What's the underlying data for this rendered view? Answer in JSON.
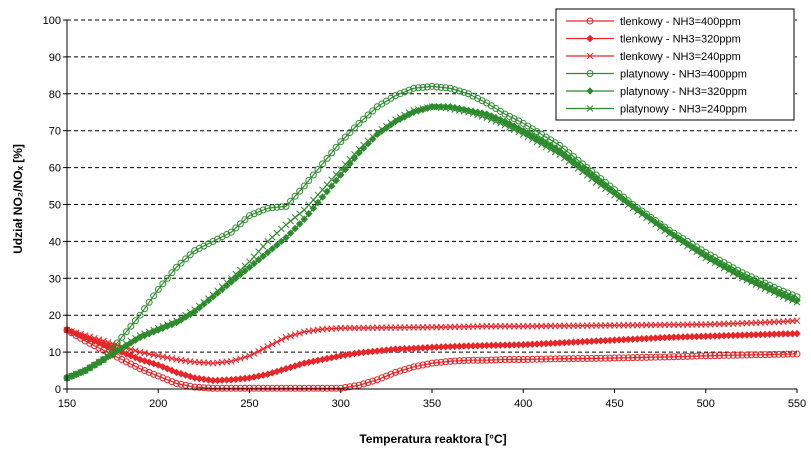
{
  "chart_data": {
    "type": "line",
    "xlabel": "Temperatura reaktora [°C]",
    "ylabel": "Udział NO₂/NOₓ [%]",
    "xlim": [
      150,
      550
    ],
    "ylim": [
      0,
      100
    ],
    "x_ticks": [
      "150",
      "200",
      "250",
      "300",
      "350",
      "400",
      "450",
      "500",
      "550"
    ],
    "y_ticks": [
      "0",
      "10",
      "20",
      "30",
      "40",
      "50",
      "60",
      "70",
      "80",
      "90",
      "100"
    ],
    "grid": "horizontal-dashed",
    "legend_position": "top-right",
    "series": [
      {
        "name": "tlenkowy - NH3=400ppm",
        "color": "#e8262a",
        "marker": "circle-open",
        "points": [
          [
            150,
            16
          ],
          [
            160,
            13
          ],
          [
            170,
            10.5
          ],
          [
            180,
            8
          ],
          [
            190,
            5.5
          ],
          [
            200,
            3.5
          ],
          [
            210,
            1.5
          ],
          [
            220,
            0.5
          ],
          [
            230,
            0.2
          ],
          [
            240,
            0.2
          ],
          [
            250,
            0.2
          ],
          [
            260,
            0.2
          ],
          [
            270,
            0.2
          ],
          [
            280,
            0.2
          ],
          [
            290,
            0.2
          ],
          [
            300,
            0.2
          ],
          [
            310,
            1
          ],
          [
            320,
            2.5
          ],
          [
            330,
            4.5
          ],
          [
            340,
            6
          ],
          [
            350,
            7
          ],
          [
            360,
            7.5
          ],
          [
            370,
            7.8
          ],
          [
            380,
            7.8
          ],
          [
            390,
            8
          ],
          [
            400,
            8
          ],
          [
            420,
            8.2
          ],
          [
            440,
            8.3
          ],
          [
            460,
            8.5
          ],
          [
            480,
            8.7
          ],
          [
            500,
            9
          ],
          [
            520,
            9.2
          ],
          [
            540,
            9.4
          ],
          [
            550,
            9.5
          ]
        ]
      },
      {
        "name": "tlenkowy - NH3=320ppm",
        "color": "#e8262a",
        "marker": "diamond-filled",
        "points": [
          [
            150,
            16
          ],
          [
            160,
            14
          ],
          [
            170,
            12
          ],
          [
            180,
            10
          ],
          [
            190,
            8
          ],
          [
            200,
            6.5
          ],
          [
            210,
            4.5
          ],
          [
            220,
            3
          ],
          [
            230,
            2.3
          ],
          [
            240,
            2.5
          ],
          [
            250,
            3
          ],
          [
            260,
            4
          ],
          [
            270,
            5.5
          ],
          [
            280,
            7
          ],
          [
            290,
            8
          ],
          [
            300,
            9
          ],
          [
            310,
            9.8
          ],
          [
            320,
            10.3
          ],
          [
            330,
            10.8
          ],
          [
            340,
            11
          ],
          [
            350,
            11.3
          ],
          [
            360,
            11.5
          ],
          [
            380,
            11.8
          ],
          [
            400,
            12
          ],
          [
            420,
            12.5
          ],
          [
            440,
            13
          ],
          [
            460,
            13.5
          ],
          [
            480,
            14
          ],
          [
            500,
            14.3
          ],
          [
            520,
            14.6
          ],
          [
            540,
            14.9
          ],
          [
            550,
            15
          ]
        ]
      },
      {
        "name": "tlenkowy - NH3=240ppm",
        "color": "#e8262a",
        "marker": "x",
        "points": [
          [
            150,
            16
          ],
          [
            160,
            14.5
          ],
          [
            170,
            13
          ],
          [
            180,
            11.5
          ],
          [
            190,
            10
          ],
          [
            200,
            9
          ],
          [
            210,
            8
          ],
          [
            220,
            7.3
          ],
          [
            230,
            7
          ],
          [
            240,
            7.5
          ],
          [
            250,
            9
          ],
          [
            260,
            11.5
          ],
          [
            270,
            14
          ],
          [
            280,
            15.5
          ],
          [
            290,
            16.2
          ],
          [
            300,
            16.5
          ],
          [
            320,
            16.6
          ],
          [
            340,
            16.7
          ],
          [
            360,
            16.8
          ],
          [
            380,
            17
          ],
          [
            400,
            17
          ],
          [
            420,
            17.1
          ],
          [
            440,
            17.2
          ],
          [
            460,
            17.3
          ],
          [
            480,
            17.4
          ],
          [
            500,
            17.5
          ],
          [
            520,
            17.8
          ],
          [
            540,
            18.2
          ],
          [
            550,
            18.5
          ]
        ]
      },
      {
        "name": "platynowy - NH3=400ppm",
        "color": "#2e8b2e",
        "marker": "circle-open",
        "points": [
          [
            150,
            3
          ],
          [
            160,
            5
          ],
          [
            170,
            8
          ],
          [
            180,
            14
          ],
          [
            190,
            20
          ],
          [
            200,
            27
          ],
          [
            210,
            33
          ],
          [
            220,
            37.5
          ],
          [
            230,
            40
          ],
          [
            240,
            42.5
          ],
          [
            250,
            47
          ],
          [
            260,
            49
          ],
          [
            270,
            49.5
          ],
          [
            280,
            55
          ],
          [
            290,
            61
          ],
          [
            300,
            67
          ],
          [
            310,
            72
          ],
          [
            320,
            76.5
          ],
          [
            330,
            79.5
          ],
          [
            340,
            81.5
          ],
          [
            350,
            82
          ],
          [
            360,
            81.5
          ],
          [
            370,
            80
          ],
          [
            380,
            77.5
          ],
          [
            390,
            74.5
          ],
          [
            400,
            72
          ],
          [
            420,
            66
          ],
          [
            440,
            58
          ],
          [
            460,
            50
          ],
          [
            480,
            43
          ],
          [
            500,
            37
          ],
          [
            520,
            31.5
          ],
          [
            540,
            27
          ],
          [
            550,
            25
          ]
        ]
      },
      {
        "name": "platynowy - NH3=320ppm",
        "color": "#2e8b2e",
        "marker": "diamond-filled",
        "points": [
          [
            150,
            3
          ],
          [
            160,
            5
          ],
          [
            170,
            8
          ],
          [
            180,
            11
          ],
          [
            190,
            14
          ],
          [
            200,
            16
          ],
          [
            210,
            18
          ],
          [
            220,
            21
          ],
          [
            230,
            25
          ],
          [
            240,
            29
          ],
          [
            250,
            33
          ],
          [
            260,
            37
          ],
          [
            270,
            41
          ],
          [
            280,
            46
          ],
          [
            290,
            52
          ],
          [
            300,
            58
          ],
          [
            310,
            64
          ],
          [
            320,
            69
          ],
          [
            330,
            72.5
          ],
          [
            340,
            75
          ],
          [
            350,
            76.5
          ],
          [
            360,
            76.5
          ],
          [
            370,
            75.5
          ],
          [
            380,
            74.5
          ],
          [
            390,
            72.5
          ],
          [
            400,
            70
          ],
          [
            420,
            64.5
          ],
          [
            440,
            57
          ],
          [
            460,
            49.5
          ],
          [
            480,
            42.5
          ],
          [
            500,
            36
          ],
          [
            520,
            30.5
          ],
          [
            540,
            26
          ],
          [
            550,
            24
          ]
        ]
      },
      {
        "name": "platynowy - NH3=240ppm",
        "color": "#2e8b2e",
        "marker": "x",
        "points": [
          [
            150,
            3
          ],
          [
            160,
            5
          ],
          [
            170,
            8
          ],
          [
            180,
            11.5
          ],
          [
            190,
            14.5
          ],
          [
            200,
            16.5
          ],
          [
            210,
            18.5
          ],
          [
            220,
            21.5
          ],
          [
            230,
            25.5
          ],
          [
            240,
            30
          ],
          [
            250,
            34.5
          ],
          [
            260,
            40
          ],
          [
            270,
            44.5
          ],
          [
            280,
            48.5
          ],
          [
            290,
            54
          ],
          [
            300,
            59.5
          ],
          [
            310,
            65
          ],
          [
            320,
            69.5
          ],
          [
            330,
            73
          ],
          [
            340,
            75.5
          ],
          [
            350,
            76.5
          ],
          [
            360,
            76
          ],
          [
            370,
            75
          ],
          [
            380,
            73.5
          ],
          [
            390,
            71.5
          ],
          [
            400,
            69
          ],
          [
            420,
            63.5
          ],
          [
            440,
            56
          ],
          [
            460,
            49
          ],
          [
            480,
            42
          ],
          [
            500,
            35.5
          ],
          [
            520,
            30
          ],
          [
            540,
            25.5
          ],
          [
            550,
            23.5
          ]
        ]
      }
    ]
  }
}
